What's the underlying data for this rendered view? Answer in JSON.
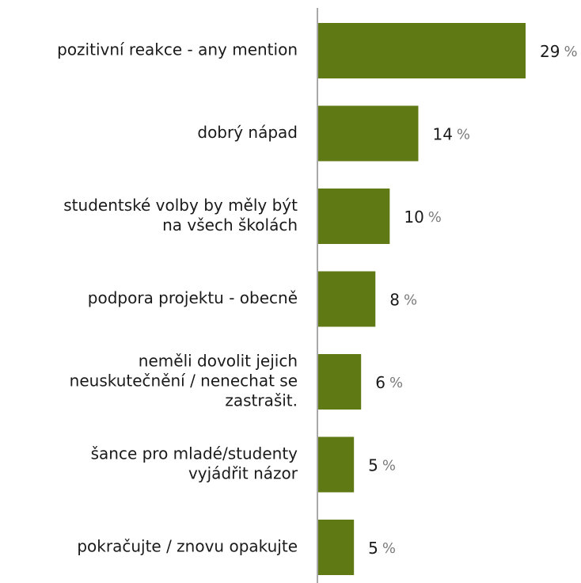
{
  "chart_data": {
    "type": "bar",
    "orientation": "horizontal",
    "categories": [
      [
        "pozitivní reakce - any mention"
      ],
      [
        "dobrý nápad"
      ],
      [
        "studentské volby by měly být",
        "na všech školách"
      ],
      [
        "podpora projektu - obecně"
      ],
      [
        "neměli dovolit jejich",
        "neuskutečnění / nenechat se",
        "zastrašit."
      ],
      [
        "šance pro mladé/studenty",
        "vyjádřit názor"
      ],
      [
        "pokračujte / znovu opakujte"
      ]
    ],
    "values": [
      29,
      14,
      10,
      8,
      6,
      5,
      5
    ],
    "value_labels": [
      "29",
      "14",
      "10",
      "8",
      "6",
      "5",
      "5"
    ],
    "unit": "%",
    "xlim": [
      0,
      29
    ],
    "grid": false,
    "colors": {
      "bar": "#5f7a15",
      "axis": "#8c8c8c"
    }
  }
}
